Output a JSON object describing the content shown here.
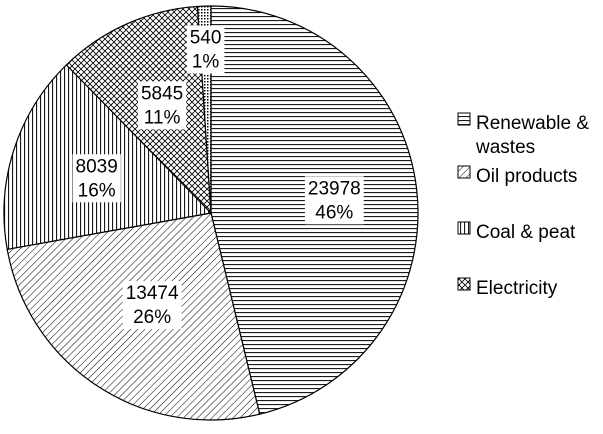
{
  "chart_data": {
    "type": "pie",
    "title": "",
    "slices": [
      {
        "label": "Renewable & wastes",
        "value": 23978,
        "percent_label": "46%",
        "value_label": "23978",
        "pattern": "horizontal-lines"
      },
      {
        "label": "Oil products",
        "value": 13474,
        "percent_label": "26%",
        "value_label": "13474",
        "pattern": "diagonal-lines"
      },
      {
        "label": "Coal & peat",
        "value": 8039,
        "percent_label": "16%",
        "value_label": "8039",
        "pattern": "vertical-lines"
      },
      {
        "label": "Electricity",
        "value": 5845,
        "percent_label": "11%",
        "value_label": "5845",
        "pattern": "crosshatch"
      },
      {
        "label": "",
        "value": 540,
        "percent_label": "1%",
        "value_label": "540",
        "pattern": "dots"
      }
    ],
    "legend": {
      "placement": "right",
      "entries": [
        {
          "lines": [
            "Renewable &",
            "wastes"
          ],
          "pattern": "horizontal-lines"
        },
        {
          "lines": [
            "Oil products"
          ],
          "pattern": "diagonal-lines"
        },
        {
          "lines": [
            "Coal & peat"
          ],
          "pattern": "vertical-lines"
        },
        {
          "lines": [
            "Electricity"
          ],
          "pattern": "crosshatch"
        }
      ]
    }
  }
}
